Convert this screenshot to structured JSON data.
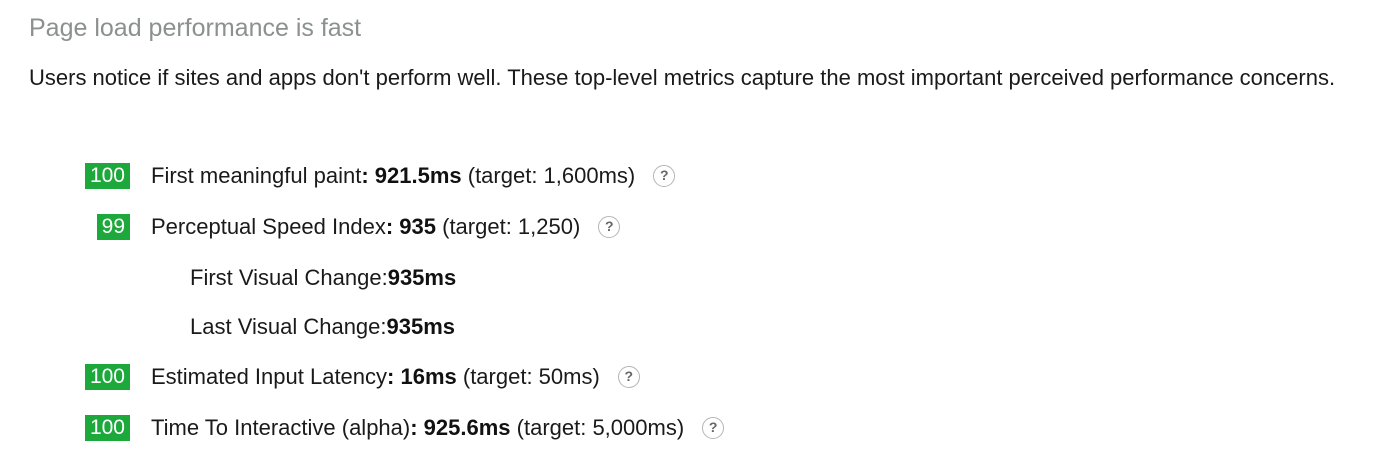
{
  "section": {
    "title": "Page load performance is fast",
    "description": "Users notice if sites and apps don't perform well. These top-level metrics capture the most important perceived performance concerns."
  },
  "metrics": [
    {
      "score": "100",
      "label": "First meaningful paint",
      "value": ": 921.5ms",
      "target": " (target: 1,600ms)",
      "help": "?"
    },
    {
      "score": "99",
      "label": "Perceptual Speed Index",
      "value": ": 935",
      "target": " (target: 1,250)",
      "help": "?",
      "subitems": [
        {
          "label": "First Visual Change: ",
          "value": "935ms"
        },
        {
          "label": "Last Visual Change: ",
          "value": "935ms"
        }
      ]
    },
    {
      "score": "100",
      "label": "Estimated Input Latency",
      "value": ": 16ms",
      "target": " (target: 50ms)",
      "help": "?"
    },
    {
      "score": "100",
      "label": "Time To Interactive (alpha)",
      "value": ": 925.6ms",
      "target": " (target: 5,000ms)",
      "help": "?"
    }
  ],
  "colors": {
    "score_pass": "#1ca83a",
    "heading": "#8b9090"
  },
  "icons": {
    "help": "help-circle-icon"
  }
}
